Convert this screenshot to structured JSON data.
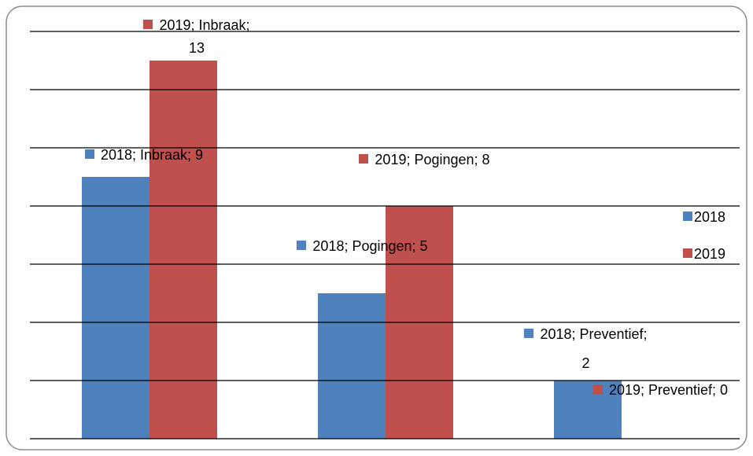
{
  "chart_data": {
    "type": "bar",
    "series": [
      {
        "name": "2018",
        "color": "#4f81bd",
        "values": [
          9,
          5,
          2
        ],
        "value_labels": [
          "2018; Inbraak; 9",
          "2018; Pogingen; 5",
          "2018; Preventief; 2"
        ]
      },
      {
        "name": "2019",
        "color": "#c0504d",
        "values": [
          13,
          8,
          0
        ],
        "value_labels": [
          "2019; Inbraak; 13",
          "2019; Pogingen; 8",
          "2019; Preventief; 0"
        ]
      }
    ],
    "ylim": [
      0,
      14
    ],
    "yticks": [
      0,
      2,
      4,
      6,
      8,
      10,
      12,
      14
    ],
    "grid": true,
    "legend": "right"
  }
}
